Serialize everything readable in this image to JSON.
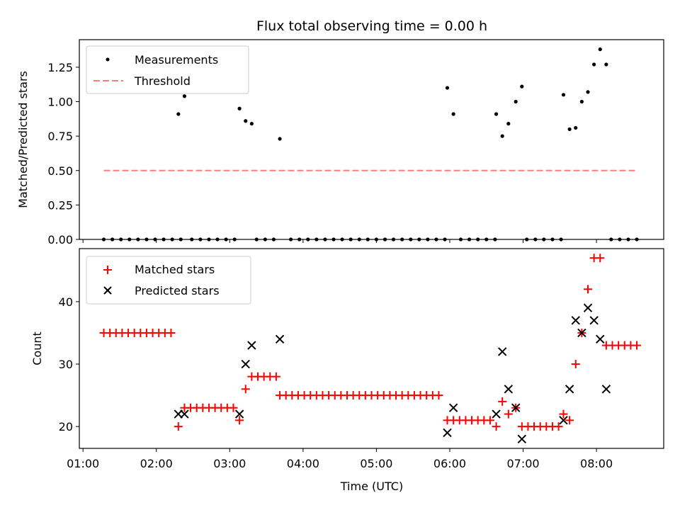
{
  "chart_data": [
    {
      "type": "scatter",
      "title": "Flux total observing time = 0.00 h",
      "xlabel": "",
      "ylabel": "Matched/Predicted stars",
      "xlim": [
        "00:57",
        "08:55"
      ],
      "ylim": [
        0,
        1.45
      ],
      "yticks": [
        0.0,
        0.25,
        0.5,
        0.75,
        1.0,
        1.25
      ],
      "ytick_labels": [
        "0.00",
        "0.25",
        "0.50",
        "0.75",
        "1.00",
        "1.25"
      ],
      "xticks": [
        "01:00",
        "02:00",
        "03:00",
        "04:00",
        "05:00",
        "06:00",
        "07:00",
        "08:00"
      ],
      "legend": {
        "position": "top-left",
        "entries": [
          "Measurements",
          "Threshold"
        ]
      },
      "colors": {
        "measurements": "#000000",
        "threshold": "#ff7f7f"
      },
      "series": [
        {
          "name": "Measurements",
          "style": "dot",
          "points": [
            [
              "01:17",
              0
            ],
            [
              "01:24",
              0
            ],
            [
              "01:31",
              0
            ],
            [
              "01:38",
              0
            ],
            [
              "01:45",
              0
            ],
            [
              "01:52",
              0
            ],
            [
              "01:59",
              0
            ],
            [
              "02:06",
              0
            ],
            [
              "02:13",
              0
            ],
            [
              "02:20",
              0
            ],
            [
              "02:18",
              0.91
            ],
            [
              "02:23",
              1.04
            ],
            [
              "02:29",
              0
            ],
            [
              "02:36",
              0
            ],
            [
              "02:43",
              0
            ],
            [
              "02:50",
              0
            ],
            [
              "02:57",
              0
            ],
            [
              "03:04",
              0
            ],
            [
              "03:08",
              0.95
            ],
            [
              "03:13",
              0.86
            ],
            [
              "03:18",
              0.84
            ],
            [
              "03:22",
              0
            ],
            [
              "03:29",
              0
            ],
            [
              "03:36",
              0
            ],
            [
              "03:41",
              0.73
            ],
            [
              "03:50",
              0
            ],
            [
              "03:57",
              0
            ],
            [
              "04:04",
              0
            ],
            [
              "04:11",
              0
            ],
            [
              "04:18",
              0
            ],
            [
              "04:25",
              0
            ],
            [
              "04:32",
              0
            ],
            [
              "04:39",
              0
            ],
            [
              "04:46",
              0
            ],
            [
              "04:53",
              0
            ],
            [
              "05:00",
              0
            ],
            [
              "05:07",
              0
            ],
            [
              "05:14",
              0
            ],
            [
              "05:21",
              0
            ],
            [
              "05:28",
              0
            ],
            [
              "05:35",
              0
            ],
            [
              "05:42",
              0
            ],
            [
              "05:49",
              0
            ],
            [
              "05:56",
              0
            ],
            [
              "05:58",
              1.1
            ],
            [
              "06:03",
              0.91
            ],
            [
              "06:09",
              0
            ],
            [
              "06:16",
              0
            ],
            [
              "06:23",
              0
            ],
            [
              "06:30",
              0
            ],
            [
              "06:37",
              0
            ],
            [
              "06:38",
              0.91
            ],
            [
              "06:43",
              0.75
            ],
            [
              "06:48",
              0.84
            ],
            [
              "06:54",
              1.0
            ],
            [
              "06:59",
              1.11
            ],
            [
              "07:03",
              0
            ],
            [
              "07:10",
              0
            ],
            [
              "07:17",
              0
            ],
            [
              "07:24",
              0
            ],
            [
              "07:31",
              0
            ],
            [
              "07:33",
              1.05
            ],
            [
              "07:38",
              0.8
            ],
            [
              "07:43",
              0.81
            ],
            [
              "07:48",
              1.0
            ],
            [
              "07:53",
              1.07
            ],
            [
              "07:58",
              1.27
            ],
            [
              "08:03",
              1.38
            ],
            [
              "08:08",
              1.27
            ],
            [
              "08:12",
              0
            ],
            [
              "08:19",
              0
            ],
            [
              "08:26",
              0
            ],
            [
              "08:33",
              0
            ]
          ]
        },
        {
          "name": "Threshold",
          "style": "dashed-line",
          "points": [
            [
              "01:17",
              0.5
            ],
            [
              "08:33",
              0.5
            ]
          ]
        }
      ]
    },
    {
      "type": "scatter",
      "title": "",
      "xlabel": "Time (UTC)",
      "ylabel": "Count",
      "xlim": [
        "00:57",
        "08:55"
      ],
      "ylim": [
        16.5,
        48.5
      ],
      "yticks": [
        20,
        30,
        40
      ],
      "ytick_labels": [
        "20",
        "30",
        "40"
      ],
      "xticks": [
        "01:00",
        "02:00",
        "03:00",
        "04:00",
        "05:00",
        "06:00",
        "07:00",
        "08:00"
      ],
      "legend": {
        "position": "top-left",
        "entries": [
          "Matched stars",
          "Predicted stars"
        ]
      },
      "colors": {
        "matched": "#ff0000",
        "predicted": "#000000"
      },
      "series": [
        {
          "name": "Matched stars",
          "marker": "plus",
          "points": [
            [
              "01:17",
              35
            ],
            [
              "01:22",
              35
            ],
            [
              "01:27",
              35
            ],
            [
              "01:32",
              35
            ],
            [
              "01:37",
              35
            ],
            [
              "01:42",
              35
            ],
            [
              "01:47",
              35
            ],
            [
              "01:52",
              35
            ],
            [
              "01:57",
              35
            ],
            [
              "02:02",
              35
            ],
            [
              "02:07",
              35
            ],
            [
              "02:12",
              35
            ],
            [
              "02:18",
              20
            ],
            [
              "02:23",
              23
            ],
            [
              "02:28",
              23
            ],
            [
              "02:33",
              23
            ],
            [
              "02:38",
              23
            ],
            [
              "02:43",
              23
            ],
            [
              "02:48",
              23
            ],
            [
              "02:53",
              23
            ],
            [
              "02:58",
              23
            ],
            [
              "03:03",
              23
            ],
            [
              "03:08",
              21
            ],
            [
              "03:13",
              26
            ],
            [
              "03:18",
              28
            ],
            [
              "03:23",
              28
            ],
            [
              "03:28",
              28
            ],
            [
              "03:33",
              28
            ],
            [
              "03:38",
              28
            ],
            [
              "03:41",
              25
            ],
            [
              "03:46",
              25
            ],
            [
              "03:51",
              25
            ],
            [
              "03:56",
              25
            ],
            [
              "04:01",
              25
            ],
            [
              "04:06",
              25
            ],
            [
              "04:11",
              25
            ],
            [
              "04:16",
              25
            ],
            [
              "04:21",
              25
            ],
            [
              "04:26",
              25
            ],
            [
              "04:31",
              25
            ],
            [
              "04:36",
              25
            ],
            [
              "04:41",
              25
            ],
            [
              "04:46",
              25
            ],
            [
              "04:51",
              25
            ],
            [
              "04:56",
              25
            ],
            [
              "05:01",
              25
            ],
            [
              "05:06",
              25
            ],
            [
              "05:11",
              25
            ],
            [
              "05:16",
              25
            ],
            [
              "05:21",
              25
            ],
            [
              "05:26",
              25
            ],
            [
              "05:31",
              25
            ],
            [
              "05:36",
              25
            ],
            [
              "05:41",
              25
            ],
            [
              "05:46",
              25
            ],
            [
              "05:51",
              25
            ],
            [
              "05:58",
              21
            ],
            [
              "06:03",
              21
            ],
            [
              "06:08",
              21
            ],
            [
              "06:13",
              21
            ],
            [
              "06:18",
              21
            ],
            [
              "06:23",
              21
            ],
            [
              "06:28",
              21
            ],
            [
              "06:33",
              21
            ],
            [
              "06:38",
              20
            ],
            [
              "06:43",
              24
            ],
            [
              "06:48",
              22
            ],
            [
              "06:54",
              23
            ],
            [
              "06:59",
              20
            ],
            [
              "07:04",
              20
            ],
            [
              "07:09",
              20
            ],
            [
              "07:14",
              20
            ],
            [
              "07:19",
              20
            ],
            [
              "07:24",
              20
            ],
            [
              "07:29",
              20
            ],
            [
              "07:33",
              22
            ],
            [
              "07:38",
              21
            ],
            [
              "07:43",
              30
            ],
            [
              "07:48",
              35
            ],
            [
              "07:53",
              42
            ],
            [
              "07:58",
              47
            ],
            [
              "08:03",
              47
            ],
            [
              "08:08",
              33
            ],
            [
              "08:13",
              33
            ],
            [
              "08:18",
              33
            ],
            [
              "08:23",
              33
            ],
            [
              "08:28",
              33
            ],
            [
              "08:33",
              33
            ]
          ]
        },
        {
          "name": "Predicted stars",
          "marker": "x",
          "points": [
            [
              "02:18",
              22
            ],
            [
              "02:23",
              22
            ],
            [
              "03:08",
              22
            ],
            [
              "03:13",
              30
            ],
            [
              "03:18",
              33
            ],
            [
              "03:41",
              34
            ],
            [
              "05:58",
              19
            ],
            [
              "06:03",
              23
            ],
            [
              "06:38",
              22
            ],
            [
              "06:43",
              32
            ],
            [
              "06:48",
              26
            ],
            [
              "06:54",
              23
            ],
            [
              "06:59",
              18
            ],
            [
              "07:33",
              21
            ],
            [
              "07:38",
              26
            ],
            [
              "07:43",
              37
            ],
            [
              "07:48",
              35
            ],
            [
              "07:53",
              39
            ],
            [
              "07:58",
              37
            ],
            [
              "08:03",
              34
            ],
            [
              "08:08",
              26
            ]
          ]
        }
      ]
    }
  ]
}
